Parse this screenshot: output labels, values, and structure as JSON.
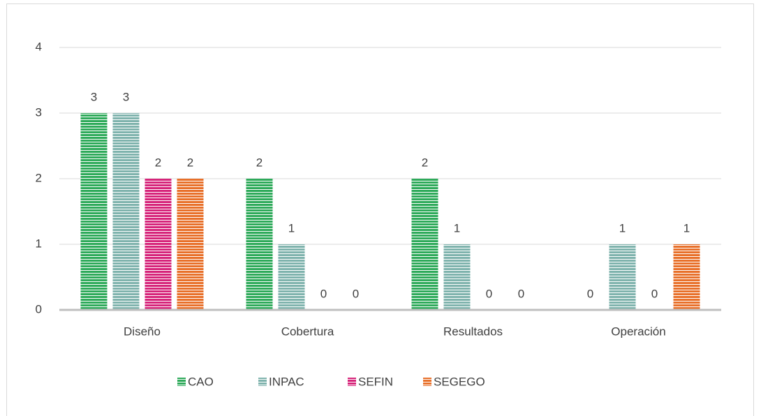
{
  "chart_data": {
    "type": "bar",
    "categories": [
      "Diseño",
      "Cobertura",
      "Resultados",
      "Operación"
    ],
    "series": [
      {
        "name": "CAO",
        "color": "#2eaa5a",
        "values": [
          3,
          2,
          2,
          0
        ]
      },
      {
        "name": "INPAC",
        "color": "#7fb3ad",
        "values": [
          3,
          1,
          1,
          1
        ]
      },
      {
        "name": "SEFIN",
        "color": "#d6247a",
        "values": [
          2,
          0,
          0,
          0
        ]
      },
      {
        "name": "SEGEGO",
        "color": "#e8702a",
        "values": [
          2,
          0,
          0,
          1
        ]
      }
    ],
    "ylim": [
      0,
      4
    ],
    "yticks": [
      0,
      1,
      2,
      3,
      4
    ],
    "grid": true,
    "legend": "bottom"
  }
}
